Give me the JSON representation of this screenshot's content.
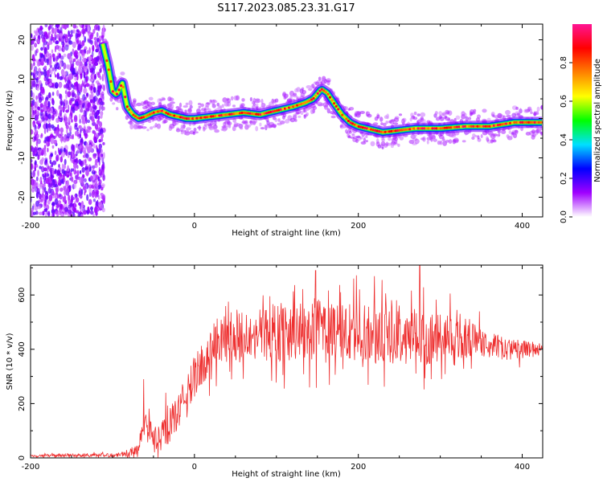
{
  "title": "S117.2023.085.23.31.G17",
  "chart_data": [
    {
      "type": "heatmap",
      "xlabel": "Height of straight line (km)",
      "ylabel": "Frequency (Hz)",
      "xlim": [
        -200,
        425
      ],
      "ylim": [
        -25,
        24
      ],
      "xticks": [
        -200,
        0,
        200,
        400
      ],
      "yticks": [
        -20,
        -10,
        0,
        10,
        20
      ],
      "colorbar": {
        "label": "Normalized spectral amplitude",
        "range": [
          0,
          1
        ],
        "ticks": [
          0.0,
          0.2,
          0.4,
          0.6,
          0.8
        ],
        "tick_labels": [
          "0.0",
          "0.2",
          "0.4",
          "0.6",
          "0.8"
        ],
        "colormap": [
          "#ffffff",
          "#a000ff",
          "#0000ff",
          "#00e0ff",
          "#00ff00",
          "#ffff00",
          "#ff8000",
          "#ff0000",
          "#ff1493"
        ]
      },
      "ridge": {
        "x": [
          -112,
          -105,
          -100,
          -95,
          -88,
          -82,
          -75,
          -68,
          -60,
          -50,
          -40,
          -30,
          -20,
          -10,
          0,
          20,
          40,
          60,
          80,
          100,
          120,
          135,
          145,
          155,
          162,
          170,
          180,
          190,
          200,
          210,
          220,
          230,
          250,
          270,
          300,
          330,
          360,
          390,
          425
        ],
        "y": [
          19,
          13,
          7,
          6,
          9,
          3,
          1,
          0,
          0.5,
          1.5,
          2,
          1,
          0.5,
          0,
          0,
          0.5,
          1,
          1.5,
          1,
          2,
          3,
          4,
          5,
          7.5,
          6.5,
          4,
          1,
          -1,
          -2,
          -2.5,
          -3,
          -3.5,
          -3,
          -2.5,
          -2.5,
          -2,
          -2,
          -1,
          -1
        ]
      },
      "noise_region_x": [
        -200,
        -110
      ]
    },
    {
      "type": "line",
      "xlabel": "Height of straight line (km)",
      "ylabel": "SNR (10 * v/v)",
      "xlim": [
        -200,
        425
      ],
      "ylim": [
        0,
        710
      ],
      "xticks": [
        -200,
        0,
        200,
        400
      ],
      "yticks": [
        0,
        200,
        400,
        600
      ],
      "color": "#ee3030",
      "envelope": {
        "x": [
          -200,
          -100,
          -85,
          -70,
          -60,
          -45,
          -30,
          -15,
          0,
          15,
          25,
          50,
          100,
          150,
          200,
          250,
          300,
          350,
          380,
          425
        ],
        "y": [
          8,
          10,
          15,
          30,
          130,
          60,
          120,
          200,
          300,
          370,
          420,
          450,
          460,
          470,
          460,
          450,
          440,
          430,
          400,
          400
        ]
      },
      "spread": {
        "x": [
          -200,
          -90,
          -70,
          -40,
          -10,
          25,
          100,
          200,
          300,
          360,
          425
        ],
        "y": [
          5,
          10,
          30,
          70,
          90,
          110,
          130,
          140,
          120,
          60,
          30
        ]
      },
      "peaks": [
        {
          "x": -62,
          "y": 290
        },
        {
          "x": -35,
          "y": 240
        },
        {
          "x": 148,
          "y": 690
        },
        {
          "x": 275,
          "y": 710
        }
      ]
    }
  ]
}
